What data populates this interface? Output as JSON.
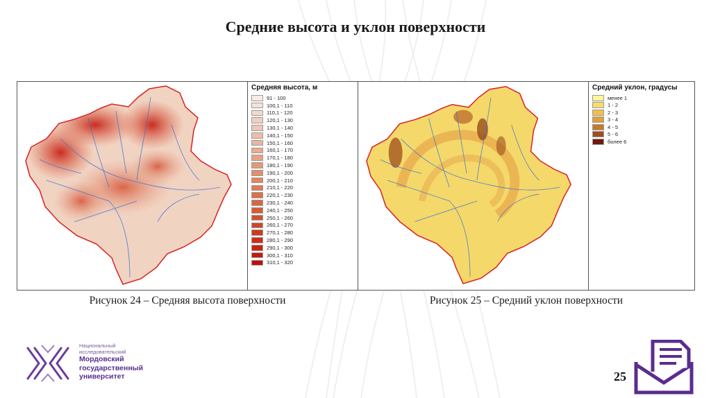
{
  "slide": {
    "title": "Средние высота и уклон поверхности",
    "page_number": "25"
  },
  "figure_left": {
    "caption": "Рисунок 24 – Средняя высота поверхности",
    "legend_title": "Средняя высота, м",
    "legend": [
      {
        "label": "91 - 100",
        "color": "#f7ebe3"
      },
      {
        "label": "100,1 - 110",
        "color": "#f5e2d7"
      },
      {
        "label": "110,1 - 120",
        "color": "#f3d9cb"
      },
      {
        "label": "120,1 - 130",
        "color": "#f1d0bf"
      },
      {
        "label": "130,1 - 140",
        "color": "#efc7b3"
      },
      {
        "label": "140,1 - 150",
        "color": "#edbea7"
      },
      {
        "label": "150,1 - 160",
        "color": "#ebb49b"
      },
      {
        "label": "160,1 - 170",
        "color": "#e9ab8f"
      },
      {
        "label": "170,1 - 180",
        "color": "#e7a283"
      },
      {
        "label": "180,1 - 190",
        "color": "#e59877"
      },
      {
        "label": "190,1 - 200",
        "color": "#e38f6b"
      },
      {
        "label": "200,1 - 210",
        "color": "#e1855f"
      },
      {
        "label": "210,1 - 220",
        "color": "#df7b54"
      },
      {
        "label": "220,1 - 230",
        "color": "#dc7049"
      },
      {
        "label": "230,1 - 240",
        "color": "#da663f"
      },
      {
        "label": "240,1 - 250",
        "color": "#d75b35"
      },
      {
        "label": "250,1 - 260",
        "color": "#d4502c"
      },
      {
        "label": "260,1 - 270",
        "color": "#d14524"
      },
      {
        "label": "270,1 - 280",
        "color": "#ce3a1d"
      },
      {
        "label": "280,1 - 290",
        "color": "#cb2f17"
      },
      {
        "label": "290,1 - 300",
        "color": "#c82412"
      },
      {
        "label": "300,1 - 310",
        "color": "#c5190e"
      },
      {
        "label": "310,1 - 320",
        "color": "#c20e0b"
      }
    ]
  },
  "figure_right": {
    "caption": "Рисунок 25 – Средний уклон поверхности",
    "legend_title": "Средний уклон, градусы",
    "legend": [
      {
        "label": "менее 1",
        "color": "#fff799"
      },
      {
        "label": "1 - 2",
        "color": "#f7dc6a"
      },
      {
        "label": "2 - 3",
        "color": "#efc04f"
      },
      {
        "label": "3 - 4",
        "color": "#e3a03a"
      },
      {
        "label": "4 - 5",
        "color": "#c87a2a"
      },
      {
        "label": "5 - 6",
        "color": "#9e4e1b"
      },
      {
        "label": "более 6",
        "color": "#6e1a0c"
      }
    ]
  },
  "university": {
    "line1": "Национальный",
    "line2": "исследовательский",
    "line3": "Мордовский",
    "line4": "государственный",
    "line5": "университет"
  }
}
